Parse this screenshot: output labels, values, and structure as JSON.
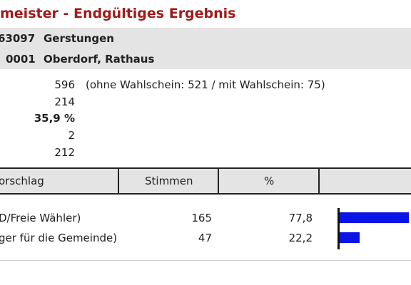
{
  "title": "meister - Endgültiges Ergebnis",
  "municipality": {
    "code": "63097",
    "name": "Gerstungen"
  },
  "district": {
    "code": "0001",
    "name": "Oberdorf, Rathaus"
  },
  "stats": [
    {
      "value": "596",
      "note": "(ohne Wahlschein: 521 / mit Wahlschein: 75)",
      "bold": false
    },
    {
      "value": "214",
      "note": "",
      "bold": false
    },
    {
      "value": "35,9 %",
      "note": "",
      "bold": true
    },
    {
      "value": "2",
      "note": "",
      "bold": false
    },
    {
      "value": "212",
      "note": "",
      "bold": false
    }
  ],
  "table": {
    "headers": {
      "proposal": "orschlag",
      "votes": "Stimmen",
      "percent": "%"
    },
    "rows": [
      {
        "label": "D/Freie Wähler)",
        "votes": "165",
        "percent": "77,8",
        "share": 77.8
      },
      {
        "label": "ger für die Gemeinde)",
        "votes": "47",
        "percent": "22,2",
        "share": 22.2
      }
    ]
  },
  "colors": {
    "title": "#a01a1a",
    "bar": "#0a14e6",
    "header_bg": "#e4e4e4"
  }
}
